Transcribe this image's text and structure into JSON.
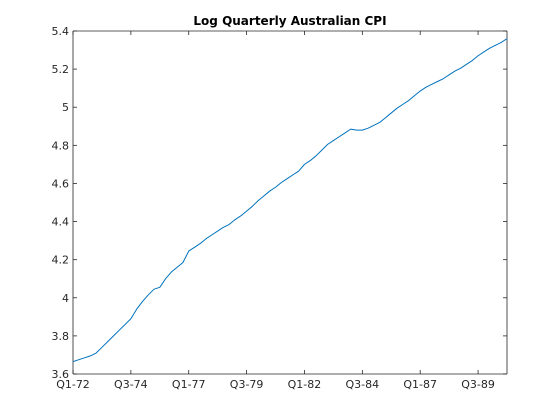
{
  "chart_data": {
    "type": "line",
    "title": "Log Quarterly Australian CPI",
    "xlabel": "",
    "ylabel": "",
    "x_ticks": [
      "Q1-72",
      "Q3-74",
      "Q1-77",
      "Q3-79",
      "Q1-82",
      "Q3-84",
      "Q1-87",
      "Q3-89"
    ],
    "x_tick_positions": [
      "Q1-72",
      "Q3-74",
      "Q1-77",
      "Q3-79",
      "Q1-82",
      "Q3-84",
      "Q1-87",
      "Q3-89"
    ],
    "y_ticks": [
      "3.6",
      "3.8",
      "4",
      "4.2",
      "4.4",
      "4.6",
      "4.8",
      "5",
      "5.2",
      "5.4"
    ],
    "ylim": [
      3.6,
      5.4
    ],
    "xlim": [
      "Q1-72",
      "Q4-90"
    ],
    "grid": false,
    "series": [
      {
        "color": "#0072bd",
        "x": [
          "Q1-72",
          "Q2-72",
          "Q3-72",
          "Q4-72",
          "Q1-73",
          "Q2-73",
          "Q3-73",
          "Q4-73",
          "Q1-74",
          "Q2-74",
          "Q3-74",
          "Q4-74",
          "Q1-75",
          "Q2-75",
          "Q3-75",
          "Q4-75",
          "Q1-76",
          "Q2-76",
          "Q3-76",
          "Q4-76",
          "Q1-77",
          "Q2-77",
          "Q3-77",
          "Q4-77",
          "Q1-78",
          "Q2-78",
          "Q3-78",
          "Q4-78",
          "Q1-79",
          "Q2-79",
          "Q3-79",
          "Q4-79",
          "Q1-80",
          "Q2-80",
          "Q3-80",
          "Q4-80",
          "Q1-81",
          "Q2-81",
          "Q3-81",
          "Q4-81",
          "Q1-82",
          "Q2-82",
          "Q3-82",
          "Q4-82",
          "Q1-83",
          "Q2-83",
          "Q3-83",
          "Q4-83",
          "Q1-84",
          "Q2-84",
          "Q3-84",
          "Q4-84",
          "Q1-85",
          "Q2-85",
          "Q3-85",
          "Q4-85",
          "Q1-86",
          "Q2-86",
          "Q3-86",
          "Q4-86",
          "Q1-87",
          "Q2-87",
          "Q3-87",
          "Q4-87",
          "Q1-88",
          "Q2-88",
          "Q3-88",
          "Q4-88",
          "Q1-89",
          "Q2-89",
          "Q3-89",
          "Q4-89",
          "Q1-90",
          "Q2-90",
          "Q3-90",
          "Q4-90"
        ],
        "values": [
          3.665,
          3.675,
          3.685,
          3.695,
          3.71,
          3.74,
          3.77,
          3.8,
          3.83,
          3.86,
          3.89,
          3.94,
          3.98,
          4.015,
          4.045,
          4.055,
          4.1,
          4.135,
          4.16,
          4.185,
          4.245,
          4.265,
          4.285,
          4.31,
          4.33,
          4.35,
          4.37,
          4.385,
          4.41,
          4.43,
          4.455,
          4.48,
          4.51,
          4.535,
          4.56,
          4.58,
          4.605,
          4.625,
          4.645,
          4.665,
          4.7,
          4.72,
          4.745,
          4.775,
          4.805,
          4.825,
          4.845,
          4.865,
          4.885,
          4.88,
          4.88,
          4.89,
          4.905,
          4.92,
          4.945,
          4.97,
          4.995,
          5.015,
          5.035,
          5.06,
          5.085,
          5.105,
          5.12,
          5.135,
          5.15,
          5.17,
          5.19,
          5.205,
          5.225,
          5.245,
          5.27,
          5.29,
          5.31,
          5.325,
          5.34,
          5.36
        ]
      }
    ]
  }
}
